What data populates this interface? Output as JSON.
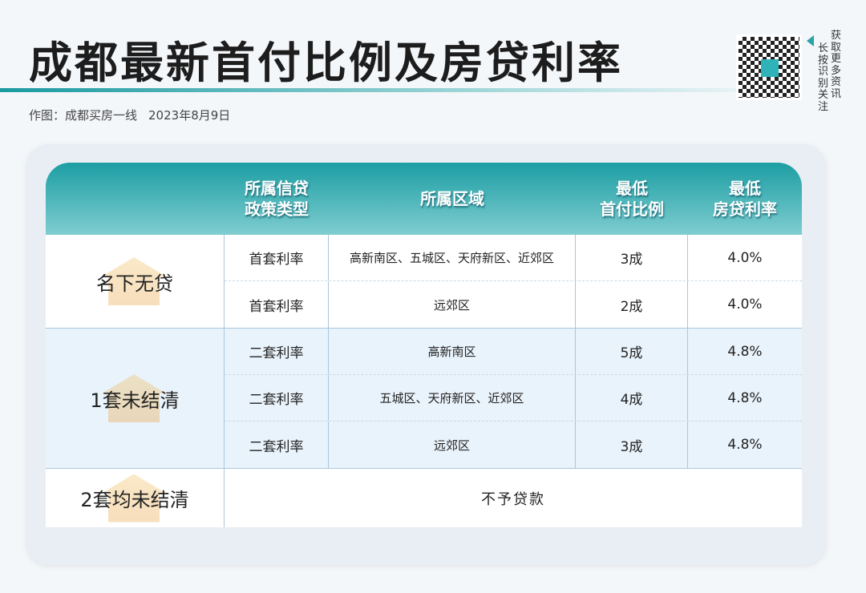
{
  "title": "成都最新首付比例及房贷利率",
  "subtitle": {
    "author": "作图：成都买房一线",
    "date": "2023年8月9日"
  },
  "qr": {
    "col1": "长按识别关注",
    "col2": "获取更多资讯"
  },
  "table": {
    "headers": [
      "",
      "所属信贷政策类型",
      "所属区域",
      "最低首付比例",
      "最低房贷利率"
    ],
    "header_lines": [
      [
        "所属信贷",
        "政策类型"
      ],
      [
        "所属区域"
      ],
      [
        "最低",
        "首付比例"
      ],
      [
        "最低",
        "房贷利率"
      ]
    ],
    "groups": [
      {
        "label": "名下无贷",
        "rows": [
          [
            "首套利率",
            "高新南区、五城区、天府新区、近郊区",
            "3成",
            "4.0%"
          ],
          [
            "首套利率",
            "远郊区",
            "2成",
            "4.0%"
          ]
        ]
      },
      {
        "label": "1套未结清",
        "rows": [
          [
            "二套利率",
            "高新南区",
            "5成",
            "4.8%"
          ],
          [
            "二套利率",
            "五城区、天府新区、近郊区",
            "4成",
            "4.8%"
          ],
          [
            "二套利率",
            "远郊区",
            "3成",
            "4.8%"
          ]
        ]
      },
      {
        "label": "2套均未结清",
        "note": "不予贷款"
      }
    ]
  },
  "colors": {
    "accent": "#1c9ea3",
    "highlight_row": "#e9f3fb"
  }
}
